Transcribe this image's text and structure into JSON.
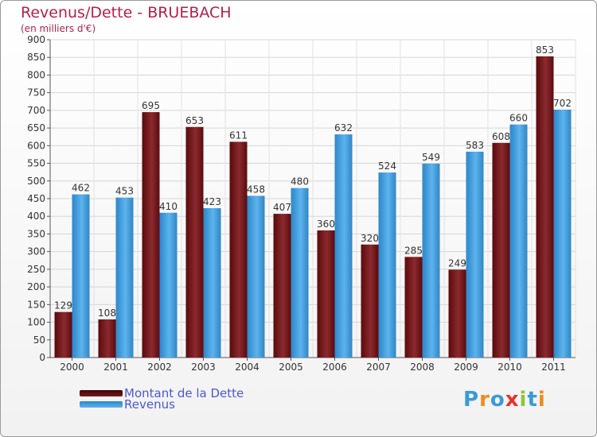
{
  "header": {
    "title": "Revenus/Dette - BRUEBACH",
    "subtitle": "(en milliers d'€)"
  },
  "legend": {
    "items": [
      {
        "label": "Montant de la Dette",
        "color": "#6b0f12"
      },
      {
        "label": "Revenus",
        "color": "#4aa3e2"
      }
    ]
  },
  "logo": {
    "text": "Proxiti",
    "letters": [
      "P",
      "r",
      "o",
      "x",
      "i",
      "t",
      "i"
    ],
    "colors": [
      "#3a9ad9",
      "#f18a1c",
      "#3a9ad9",
      "#e6332a",
      "#8cc63f",
      "#3a9ad9",
      "#f18a1c"
    ]
  },
  "chart_data": {
    "type": "bar",
    "title": "Revenus/Dette - BRUEBACH",
    "subtitle": "(en milliers d'€)",
    "categories": [
      "2000",
      "2001",
      "2002",
      "2003",
      "2004",
      "2005",
      "2006",
      "2007",
      "2008",
      "2009",
      "2010",
      "2011"
    ],
    "series": [
      {
        "name": "Montant de la Dette",
        "color": "#6b0f12",
        "values": [
          129,
          108,
          695,
          653,
          611,
          407,
          360,
          320,
          285,
          249,
          608,
          853
        ]
      },
      {
        "name": "Revenus",
        "color": "#4aa3e2",
        "values": [
          462,
          453,
          410,
          423,
          458,
          480,
          632,
          524,
          549,
          583,
          660,
          702
        ]
      }
    ],
    "yticks": [
      0,
      50,
      100,
      150,
      200,
      250,
      300,
      350,
      400,
      450,
      500,
      550,
      600,
      650,
      700,
      750,
      800,
      850,
      900
    ],
    "ylim": [
      0,
      900
    ],
    "grid": true,
    "legend_position": "bottom-left"
  }
}
